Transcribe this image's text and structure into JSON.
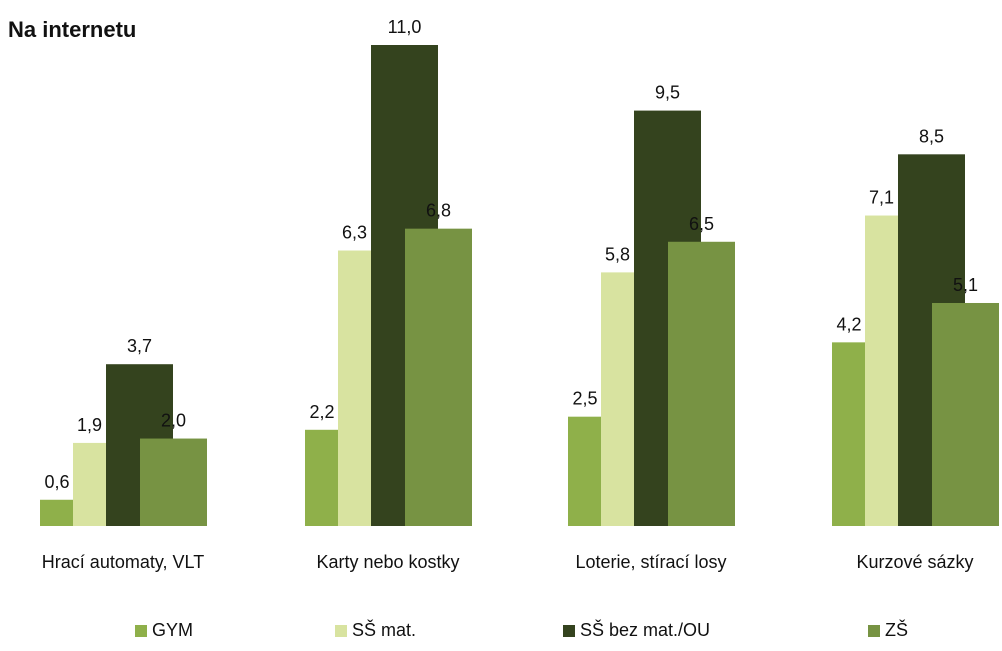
{
  "chart_data": {
    "type": "bar",
    "title": "Na internetu",
    "categories": [
      "Hrací automaty, VLT",
      "Karty nebo kostky",
      "Loterie, stírací losy",
      "Kurzové sázky"
    ],
    "series": [
      {
        "name": "GYM",
        "color": "#8fb04a",
        "values": [
          0.6,
          2.2,
          2.5,
          4.2
        ],
        "labels": [
          "0,6",
          "2,2",
          "2,5",
          "4,2"
        ]
      },
      {
        "name": "SŠ mat.",
        "color": "#d8e3a0",
        "values": [
          1.9,
          6.3,
          5.8,
          7.1
        ],
        "labels": [
          "1,9",
          "6,3",
          "5,8",
          "7,1"
        ]
      },
      {
        "name": "SŠ bez mat./OU",
        "color": "#34431e",
        "values": [
          3.7,
          11.0,
          9.5,
          8.5
        ],
        "labels": [
          "3,7",
          "11,0",
          "9,5",
          "8,5"
        ]
      },
      {
        "name": "ZŠ",
        "color": "#779343",
        "values": [
          2.0,
          6.8,
          6.5,
          5.1
        ],
        "labels": [
          "2,0",
          "6,8",
          "6,5",
          "5,1"
        ]
      }
    ],
    "ylim": [
      0,
      11
    ],
    "grid": false,
    "legend_position": "bottom"
  }
}
